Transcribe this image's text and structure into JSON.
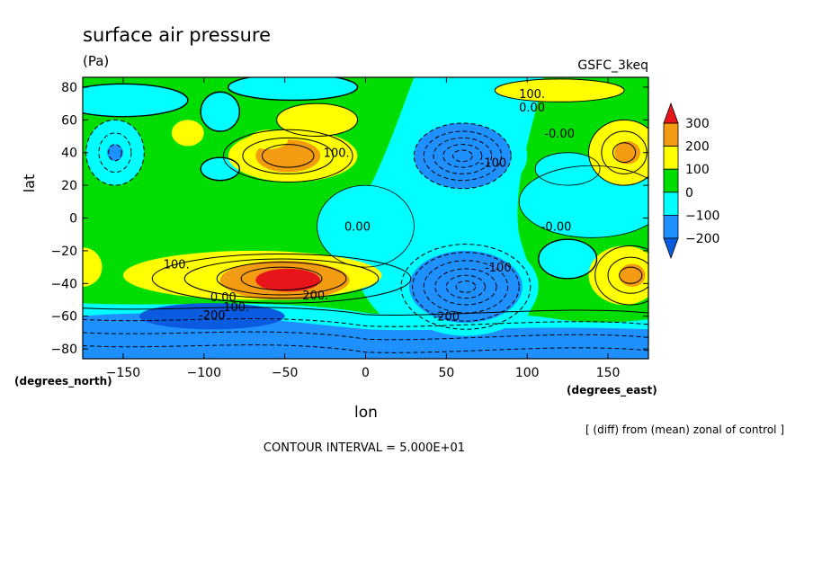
{
  "chart_data": {
    "type": "heatmap",
    "title": "surface air pressure",
    "units": "(Pa)",
    "model": "GSFC_3keq",
    "xlabel": "lon",
    "ylabel": "lat",
    "x_units": "(degrees_east)",
    "y_units": "(degrees_north)",
    "subtitle": "[ (diff) from (mean) zonal of control ]",
    "contour_interval": "CONTOUR INTERVAL = 5.000E+01",
    "xlim": [
      -175,
      175
    ],
    "ylim": [
      -86,
      86
    ],
    "xticks": [
      -150,
      -100,
      -50,
      0,
      50,
      100,
      150
    ],
    "xtick_labels": [
      "−150",
      "−100",
      "−50",
      "0",
      "50",
      "100",
      "150"
    ],
    "yticks": [
      80,
      60,
      40,
      20,
      0,
      -20,
      -40,
      -60,
      -80
    ],
    "ytick_labels": [
      "80",
      "60",
      "40",
      "20",
      "0",
      "−20",
      "−40",
      "−60",
      "−80"
    ],
    "colorbar": {
      "levels": [
        300,
        200,
        100,
        0,
        -100,
        -200
      ],
      "labels": [
        "300",
        "200",
        "100",
        "0",
        "−100",
        "−200"
      ],
      "colors": [
        "#e8141c",
        "#f39c12",
        "#ffff00",
        "#00dd00",
        "#00ffff",
        "#1e90ff",
        "#0a5be0"
      ]
    },
    "contour_labels": [
      {
        "text": "100.",
        "lon": 103,
        "lat": 76
      },
      {
        "text": "0.00",
        "lon": 103,
        "lat": 68
      },
      {
        "text": "-0.00",
        "lon": 120,
        "lat": 52
      },
      {
        "text": "100.",
        "lon": -18,
        "lat": 40
      },
      {
        "text": "-100",
        "lon": 79,
        "lat": 34
      },
      {
        "text": "0.00",
        "lon": -5,
        "lat": -5
      },
      {
        "text": "-0.00",
        "lon": 118,
        "lat": -5
      },
      {
        "text": "100.",
        "lon": -117,
        "lat": -28
      },
      {
        "text": "-100",
        "lon": 82,
        "lat": -30
      },
      {
        "text": "200.",
        "lon": -31,
        "lat": -47
      },
      {
        "text": "0.00",
        "lon": -88,
        "lat": -48
      },
      {
        "text": "-200",
        "lon": -95,
        "lat": -59
      },
      {
        "text": "100.",
        "lon": -80,
        "lat": -54
      },
      {
        "text": "-200",
        "lon": 50,
        "lat": -60
      }
    ],
    "extrema": [
      {
        "lon": -55,
        "lat": 37,
        "value": 250
      },
      {
        "lon": -48,
        "lat": -38,
        "value": 330
      },
      {
        "lon": 60,
        "lat": 38,
        "value": -300
      },
      {
        "lon": 62,
        "lat": -42,
        "value": -330
      },
      {
        "lon": -155,
        "lat": 40,
        "value": -200
      },
      {
        "lon": 160,
        "lat": 40,
        "value": 200
      },
      {
        "lon": 165,
        "lat": -35,
        "value": 200
      }
    ]
  }
}
